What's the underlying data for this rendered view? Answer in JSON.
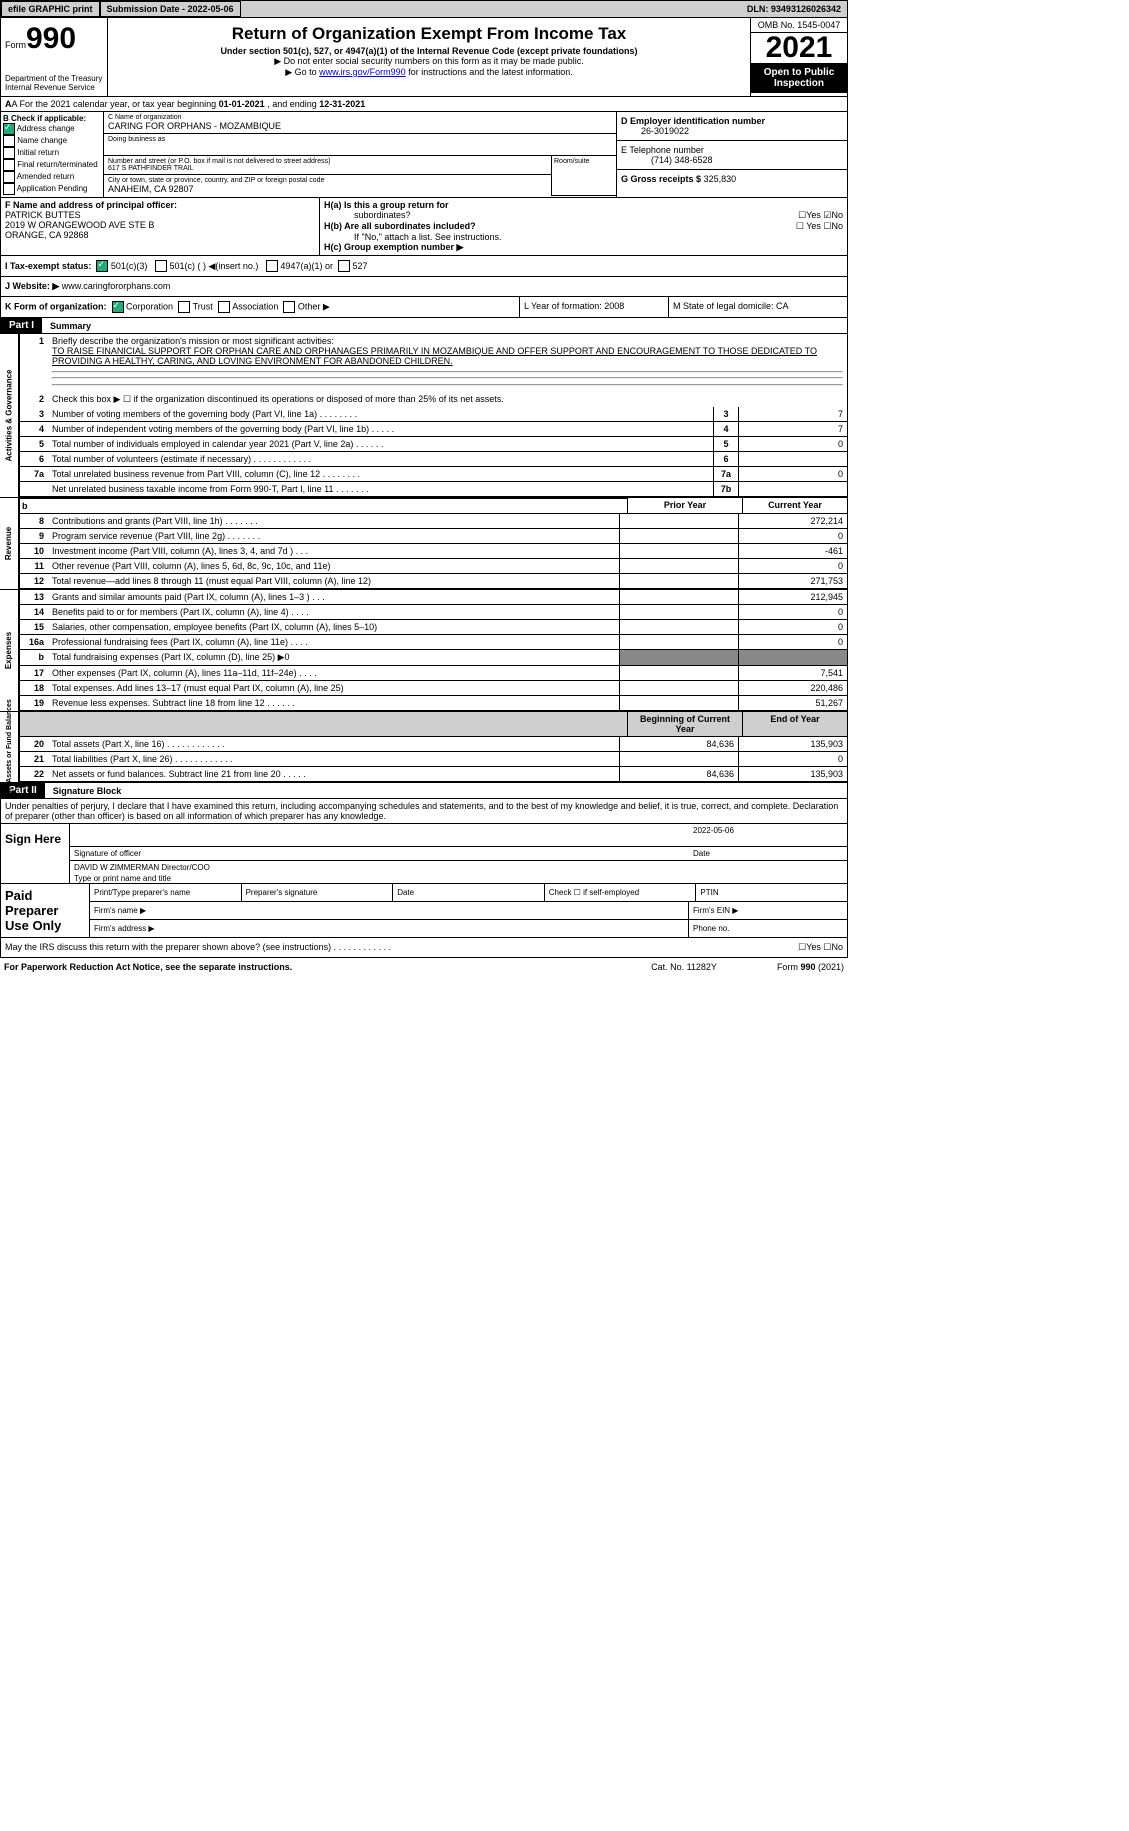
{
  "topbar": {
    "efile": "efile GRAPHIC print",
    "sub": "Submission Date - 2022-05-06",
    "dln": "DLN: 93493126026342"
  },
  "header": {
    "form_word": "Form",
    "form_no": "990",
    "title": "Return of Organization Exempt From Income Tax",
    "sub1": "Under section 501(c), 527, or 4947(a)(1) of the Internal Revenue Code (except private foundations)",
    "sub2": "▶ Do not enter social security numbers on this form as it may be made public.",
    "sub3_pre": "▶ Go to ",
    "sub3_link": "www.irs.gov/Form990",
    "sub3_post": " for instructions and the latest information.",
    "dept": "Department of the Treasury\nInternal Revenue Service",
    "omb": "OMB No. 1545-0047",
    "year": "2021",
    "pub": "Open to Public Inspection"
  },
  "rowA": {
    "pre": "A For the 2021 calendar year, or tax year beginning ",
    "d1": "01-01-2021",
    "mid": " , and ending ",
    "d2": "12-31-2021"
  },
  "colB": {
    "hdr": "B Check if applicable:",
    "items": [
      "Address change",
      "Name change",
      "Initial return",
      "Final return/terminated",
      "Amended return",
      "Application Pending"
    ],
    "checked": 0
  },
  "colC": {
    "lbl_name": "C Name of organization",
    "org": "CARING FOR ORPHANS - MOZAMBIQUE",
    "lbl_dba": "Doing business as",
    "dba": "",
    "lbl_addr": "Number and street (or P.O. box if mail is not delivered to street address)",
    "room_lbl": "Room/suite",
    "street": "617 S PATHFINDER TRAIL",
    "lbl_city": "City or town, state or province, country, and ZIP or foreign postal code",
    "city": "ANAHEIM, CA  92807"
  },
  "colD": {
    "ein_lbl": "D Employer identification number",
    "ein": "26-3019022",
    "tel_lbl": "E Telephone number",
    "tel": "(714) 348-6528",
    "gross_lbl": "G Gross receipts $",
    "gross": "325,830"
  },
  "colF": {
    "lbl": "F Name and address of principal officer:",
    "name": "PATRICK BUTTES",
    "addr1": "2019 W ORANGEWOOD AVE STE B",
    "addr2": "ORANGE, CA  92868"
  },
  "colH": {
    "ha": "H(a)  Is this a group return for",
    "ha2": "subordinates?",
    "ha_yn": "☐Yes ☑No",
    "hb": "H(b)  Are all subordinates included?",
    "hb_yn": "☐ Yes ☐No",
    "hb_note": "If \"No,\" attach a list. See instructions.",
    "hc": "H(c)  Group exemption number ▶"
  },
  "taxStatus": {
    "lbl": "I   Tax-exempt status:",
    "c3": "501(c)(3)",
    "c": "501(c) (   ) ◀(insert no.)",
    "a": "4947(a)(1) or",
    "s": "527"
  },
  "website": {
    "lbl": "J   Website: ▶",
    "val": "  www.caringfororphans.com"
  },
  "rowK": {
    "lbl": "K Form of organization:",
    "corp": "Corporation",
    "trust": "Trust",
    "assoc": "Association",
    "other": "Other ▶",
    "l": "L Year of formation: 2008",
    "m": "M State of legal domicile: CA"
  },
  "part1": {
    "hdr": "Part I",
    "title": "Summary"
  },
  "summary": {
    "l1_lbl": "Briefly describe the organization's mission or most significant activities:",
    "l1_txt": "TO RAISE FINANICIAL SUPPORT FOR ORPHAN CARE AND ORPHANAGES PRIMARILY IN MOZAMBIQUE AND OFFER SUPPORT AND ENCOURAGEMENT TO THOSE DEDICATED TO PROVIDING A HEALTHY, CARING, AND LOVING ENVIRONMENT FOR ABANDONED CHILDREN.",
    "l2": "Check this box ▶ ☐ if the organization discontinued its operations or disposed of more than 25% of its net assets.",
    "lines": [
      {
        "n": "3",
        "t": "Number of voting members of the governing body (Part VI, line 1a)   .    .    .    .    .    .    .    .",
        "b": "3",
        "v": "7"
      },
      {
        "n": "4",
        "t": "Number of independent voting members of the governing body (Part VI, line 1b)   .    .    .    .    .",
        "b": "4",
        "v": "7"
      },
      {
        "n": "5",
        "t": "Total number of individuals employed in calendar year 2021 (Part V, line 2a)   .    .    .    .    .    .",
        "b": "5",
        "v": "0"
      },
      {
        "n": "6",
        "t": "Total number of volunteers (estimate if necessary)    .    .    .    .    .    .    .    .    .    .    .    .",
        "b": "6",
        "v": ""
      },
      {
        "n": "7a",
        "t": "Total unrelated business revenue from Part VIII, column (C), line 12   .    .    .    .    .    .    .    .",
        "b": "7a",
        "v": "0"
      },
      {
        "n": "",
        "t": "Net unrelated business taxable income from Form 990-T, Part I, line 11   .    .    .    .    .    .    .",
        "b": "7b",
        "v": ""
      }
    ],
    "py": "Prior Year",
    "cy": "Current Year",
    "boy": "Beginning of Current Year",
    "eoy": "End of Year",
    "rev": [
      {
        "n": "8",
        "t": "Contributions and grants (Part VIII, line 1h)   .    .    .    .    .    .    .",
        "p": "",
        "c": "272,214"
      },
      {
        "n": "9",
        "t": "Program service revenue (Part VIII, line 2g)   .    .    .    .    .    .    .",
        "p": "",
        "c": "0"
      },
      {
        "n": "10",
        "t": "Investment income (Part VIII, column (A), lines 3, 4, and 7d )    .    .    .",
        "p": "",
        "c": "-461"
      },
      {
        "n": "11",
        "t": "Other revenue (Part VIII, column (A), lines 5, 6d, 8c, 9c, 10c, and 11e)",
        "p": "",
        "c": "0"
      },
      {
        "n": "12",
        "t": "Total revenue—add lines 8 through 11 (must equal Part VIII, column (A), line 12)",
        "p": "",
        "c": "271,753"
      }
    ],
    "exp": [
      {
        "n": "13",
        "t": "Grants and similar amounts paid (Part IX, column (A), lines 1–3 )   .    .    .",
        "p": "",
        "c": "212,945"
      },
      {
        "n": "14",
        "t": "Benefits paid to or for members (Part IX, column (A), line 4)   .    .    .    .",
        "p": "",
        "c": "0"
      },
      {
        "n": "15",
        "t": "Salaries, other compensation, employee benefits (Part IX, column (A), lines 5–10)",
        "p": "",
        "c": "0"
      },
      {
        "n": "16a",
        "t": "Professional fundraising fees (Part IX, column (A), line 11e)   .    .    .    .",
        "p": "",
        "c": "0"
      },
      {
        "n": "b",
        "t": "Total fundraising expenses (Part IX, column (D), line 25) ▶0",
        "p": "",
        "c": "",
        "shade": true
      },
      {
        "n": "17",
        "t": "Other expenses (Part IX, column (A), lines 11a–11d, 11f–24e)   .    .    .    .",
        "p": "",
        "c": "7,541"
      },
      {
        "n": "18",
        "t": "Total expenses. Add lines 13–17 (must equal Part IX, column (A), line 25)",
        "p": "",
        "c": "220,486"
      },
      {
        "n": "19",
        "t": "Revenue less expenses. Subtract line 18 from line 12   .    .    .    .    .    .",
        "p": "",
        "c": "51,267"
      }
    ],
    "net": [
      {
        "n": "20",
        "t": "Total assets (Part X, line 16)   .    .    .    .    .    .    .    .    .    .    .    .",
        "p": "84,636",
        "c": "135,903"
      },
      {
        "n": "21",
        "t": "Total liabilities (Part X, line 26)   .    .    .    .    .    .    .    .    .    .    .    .",
        "p": "",
        "c": "0"
      },
      {
        "n": "22",
        "t": "Net assets or fund balances. Subtract line 21 from line 20   .    .    .    .    .",
        "p": "84,636",
        "c": "135,903"
      }
    ]
  },
  "tabs": {
    "ag": "Activities & Governance",
    "rev": "Revenue",
    "exp": "Expenses",
    "net": "Net Assets or\nFund Balances"
  },
  "part2": {
    "hdr": "Part II",
    "title": "Signature Block",
    "decl": "Under penalties of perjury, I declare that I have examined this return, including accompanying schedules and statements, and to the best of my knowledge and belief, it is true, correct, and complete. Declaration of preparer (other than officer) is based on all information of which preparer has any knowledge."
  },
  "sign": {
    "here": "Sign Here",
    "sig_lbl": "Signature of officer",
    "date_lbl": "Date",
    "date": "2022-05-06",
    "name": "DAVID W ZIMMERMAN  Director/COO",
    "name_lbl": "Type or print name and title"
  },
  "paid": {
    "hdr": "Paid Preparer Use Only",
    "r1": [
      "Print/Type preparer's name",
      "Preparer's signature",
      "Date",
      "Check ☐ if self-employed",
      "PTIN"
    ],
    "r2a": "Firm's name   ▶",
    "r2b": "Firm's EIN ▶",
    "r3a": "Firm's address ▶",
    "r3b": "Phone no."
  },
  "may": {
    "txt": "May the IRS discuss this return with the preparer shown above? (see instructions)    .    .    .    .    .    .    .    .    .    .    .    .",
    "yn": "☐Yes  ☐No"
  },
  "footer": {
    "l": "For Paperwork Reduction Act Notice, see the separate instructions.",
    "m": "Cat. No. 11282Y",
    "r": "Form 990 (2021)"
  }
}
